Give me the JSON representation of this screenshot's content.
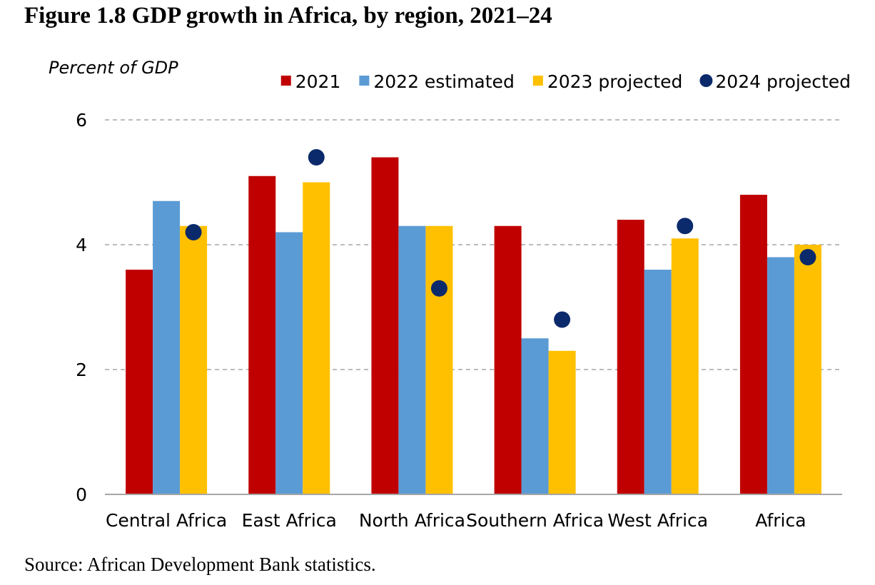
{
  "title": "Figure 1.8 GDP growth in Africa, by region, 2021–24",
  "source": "Source: African Development Bank statistics.",
  "chart_data": {
    "type": "bar",
    "title": "",
    "xlabel": "",
    "ylabel": "Percent of GDP",
    "ylim": [
      0,
      6
    ],
    "yticks": [
      0,
      2,
      4,
      6
    ],
    "grid": true,
    "legend_position": "top-right",
    "categories": [
      "Central Africa",
      "East Africa",
      "North Africa",
      "Southern Africa",
      "West Africa",
      "Africa"
    ],
    "series": [
      {
        "name": "2021",
        "type": "bar",
        "color": "#C00000",
        "values": [
          3.6,
          5.1,
          5.4,
          4.3,
          4.4,
          4.8
        ]
      },
      {
        "name": "2022 estimated",
        "type": "bar",
        "color": "#5B9BD5",
        "values": [
          4.7,
          4.2,
          4.3,
          2.5,
          3.6,
          3.8
        ]
      },
      {
        "name": "2023 projected",
        "type": "bar",
        "color": "#FFC000",
        "values": [
          4.3,
          5.0,
          4.3,
          2.3,
          4.1,
          4.0
        ]
      },
      {
        "name": "2024 projected",
        "type": "marker",
        "color": "#0B2A6B",
        "values": [
          4.2,
          5.4,
          3.3,
          2.8,
          4.3,
          3.8
        ]
      }
    ]
  }
}
